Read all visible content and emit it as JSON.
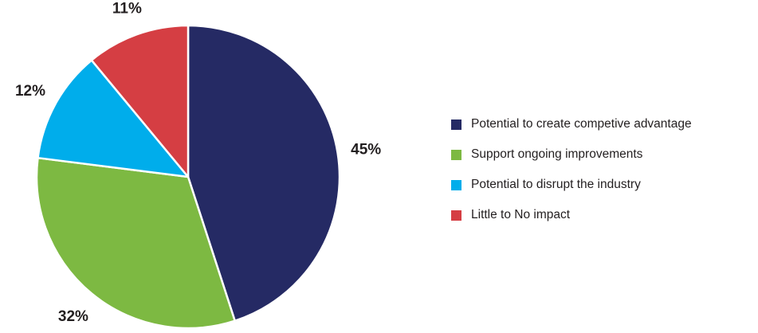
{
  "chart_data": {
    "type": "pie",
    "title": "",
    "slices": [
      {
        "label": "Potential to create competive advantage",
        "value": 45,
        "display": "45%",
        "color": "#252a64"
      },
      {
        "label": "Support ongoing improvements",
        "value": 32,
        "display": "32%",
        "color": "#7db942"
      },
      {
        "label": "Potential to disrupt the industry",
        "value": 12,
        "display": "12%",
        "color": "#00adeb"
      },
      {
        "label": "Little to No impact",
        "value": 11,
        "display": "11%",
        "color": "#d53e43"
      }
    ],
    "start_angle_deg": 0,
    "direction": "clockwise",
    "legend_position": "right"
  }
}
